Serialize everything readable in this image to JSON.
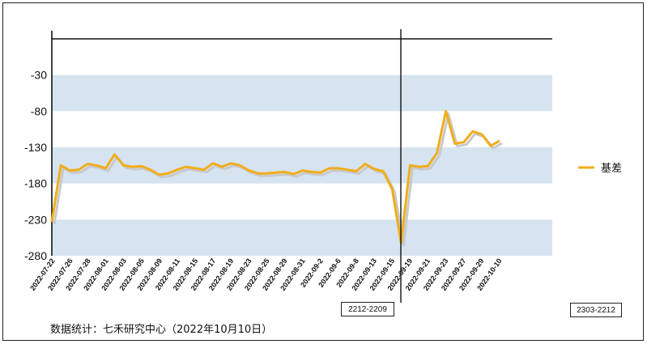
{
  "chart_data": {
    "type": "line",
    "title": "",
    "xlabel": "",
    "ylabel": "",
    "ylim": [
      -280,
      20
    ],
    "y_ticks": [
      -30,
      -80,
      -130,
      -180,
      -230,
      -280
    ],
    "x_tick_labels": [
      "2022-07-22",
      "2022-07-26",
      "2022-07-28",
      "2022-08-01",
      "2022-08-03",
      "2022-08-05",
      "2022-08-09",
      "2022-08-11",
      "2022-08-15",
      "2022-08-17",
      "2022-08-19",
      "2022-08-23",
      "2022-08-25",
      "2022-08-29",
      "2022-08-31",
      "2022-09-2",
      "2022-09-6",
      "2022-09-8",
      "2022-09-13",
      "2022-09-15",
      "2022-09-19",
      "2022-09-21",
      "2022-09-23",
      "2022-09-27",
      "2022-09-29",
      "2022-10-10"
    ],
    "series": [
      {
        "name": "基差",
        "color": "#f0ad1c",
        "values": [
          -233,
          -155,
          -162,
          -161,
          -153,
          -155,
          -159,
          -140,
          -155,
          -157,
          -156,
          -161,
          -168,
          -166,
          -161,
          -157,
          -159,
          -161,
          -152,
          -157,
          -152,
          -155,
          -162,
          -166,
          -166,
          -165,
          -164,
          -167,
          -162,
          -164,
          -165,
          -159,
          -159,
          -161,
          -163,
          -153,
          -160,
          -163,
          -188,
          -262,
          -155,
          -157,
          -156,
          -138,
          -80,
          -125,
          -123,
          -108,
          -112,
          -128,
          -121
        ]
      }
    ],
    "vline_label": "2212-2209",
    "band_color": "#d6e3f0",
    "legend_position": "right"
  },
  "tags": {
    "left": "2212-2209",
    "right": "2303-2212"
  },
  "source_note": "数据统计：七禾研究中心（2022年10月10日）"
}
